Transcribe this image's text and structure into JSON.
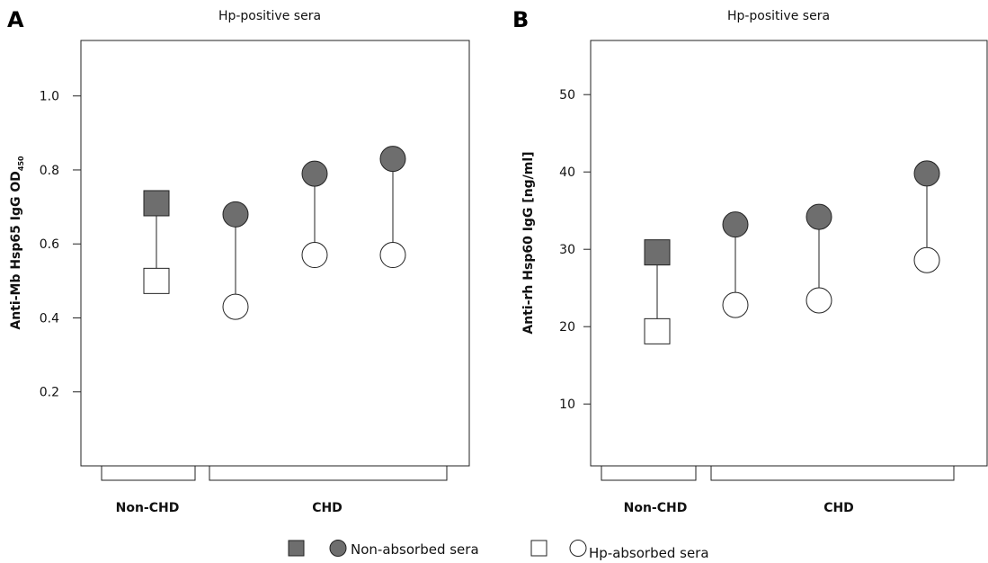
{
  "chart_data": [
    {
      "panel": "A",
      "type": "scatter",
      "title": "Hp-positive sera",
      "ylabel": "Anti-Mb Hsp65 IgG OD",
      "ylabel_subscript": "450",
      "ylim": [
        0.0,
        1.15
      ],
      "yticks": [
        "0.2",
        "0.4",
        "0.6",
        "0.8",
        "1.0"
      ],
      "groups": [
        "Non-CHD",
        "CHD"
      ],
      "grid": false,
      "series": [
        {
          "name": "Non-absorbed sera",
          "values": [
            0.71,
            0.68,
            0.79,
            0.83
          ]
        },
        {
          "name": "Hp-absorbed sera",
          "values": [
            0.5,
            0.43,
            0.57,
            0.57
          ]
        }
      ]
    },
    {
      "panel": "B",
      "type": "scatter",
      "title": "Hp-positive sera",
      "ylabel": "Anti-rh Hsp60 IgG [ng/ml]",
      "ylim": [
        2,
        57
      ],
      "yticks": [
        "10",
        "20",
        "30",
        "40",
        "50"
      ],
      "groups": [
        "Non-CHD",
        "CHD"
      ],
      "grid": false,
      "series": [
        {
          "name": "Non-absorbed sera",
          "values": [
            29.6,
            33.2,
            34.2,
            39.8
          ]
        },
        {
          "name": "Hp-absorbed sera",
          "values": [
            19.4,
            22.8,
            23.4,
            28.6
          ]
        }
      ]
    }
  ],
  "legend": {
    "filled_label": "Non-absorbed sera",
    "open_label": "Hp-absorbed sera",
    "filled_color": "#6e6e6e",
    "open_color": "#ffffff"
  }
}
